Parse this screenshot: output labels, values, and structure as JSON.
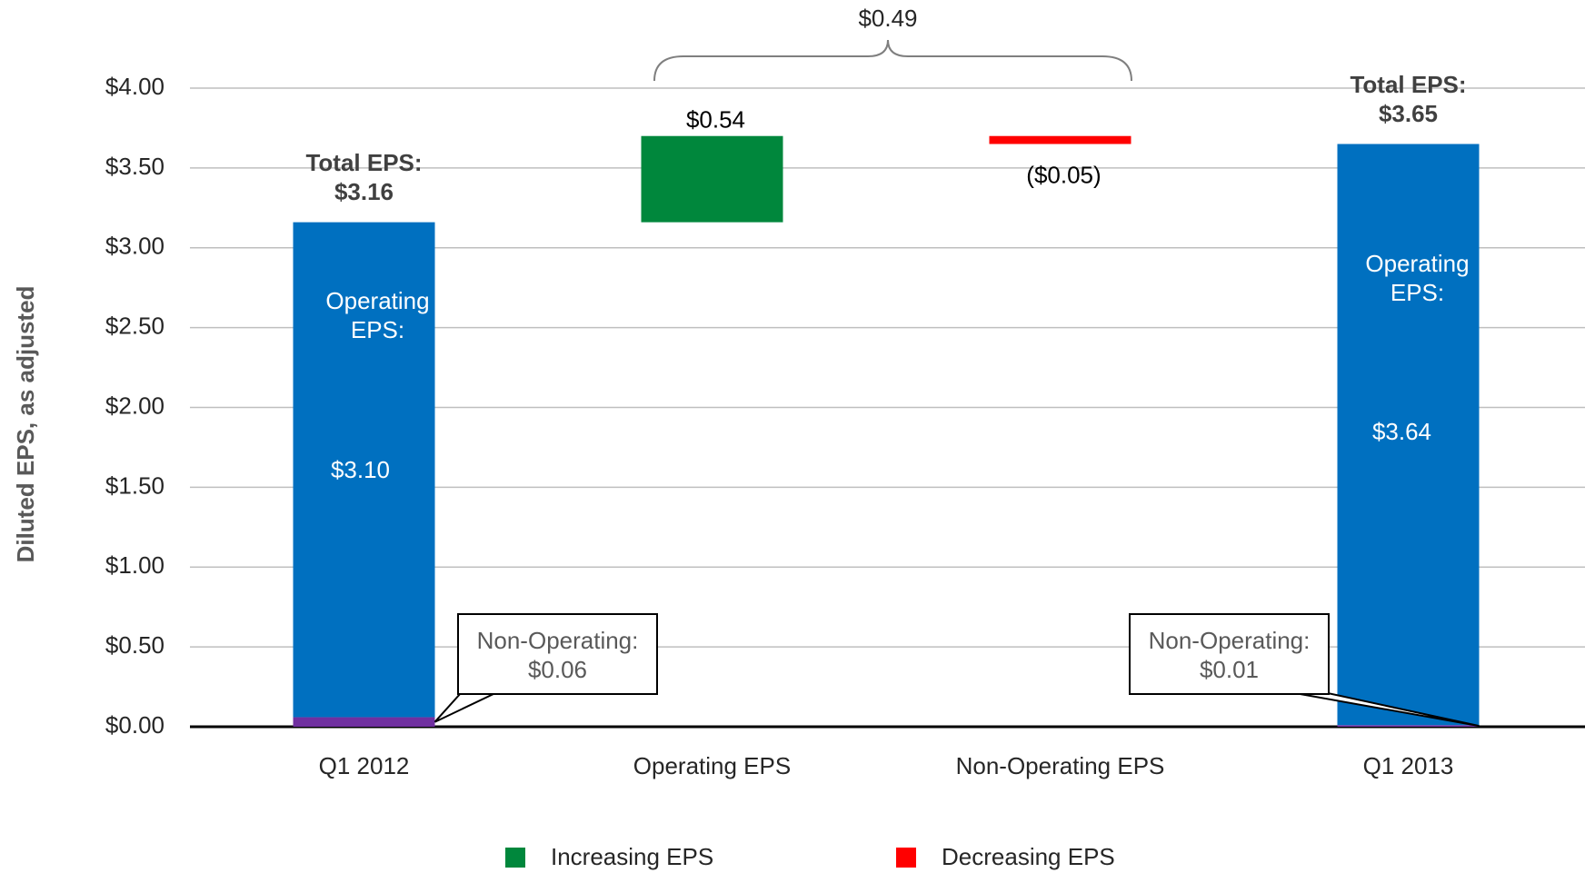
{
  "chart_data": {
    "type": "waterfall",
    "ylabel": "Diluted EPS, as adjusted",
    "categories": [
      "Q1 2012",
      "Operating EPS",
      "Non-Operating EPS",
      "Q1 2013"
    ],
    "ylim": [
      0,
      4
    ],
    "yticks": [
      {
        "value": 0,
        "label": "$0.00"
      },
      {
        "value": 0.5,
        "label": "$0.50"
      },
      {
        "value": 1,
        "label": "$1.00"
      },
      {
        "value": 1.5,
        "label": "$1.50"
      },
      {
        "value": 2,
        "label": "$2.00"
      },
      {
        "value": 2.5,
        "label": "$2.50"
      },
      {
        "value": 3,
        "label": "$3.00"
      },
      {
        "value": 3.5,
        "label": "$3.50"
      },
      {
        "value": 4,
        "label": "$4.00"
      }
    ],
    "grid": true,
    "operating_color": "#0070c0",
    "non_operating_color": "#7030a0",
    "operating_text": "Operating EPS:",
    "non_operating_text": "Non-Operating:",
    "total_text": "Total EPS:",
    "start": {
      "operating": 3.1,
      "operating_label": "$3.10",
      "non_operating": 0.06,
      "non_operating_label": "$0.06",
      "total": 3.16,
      "total_label": "$3.16"
    },
    "changes": [
      {
        "value": 0.54,
        "label": "$0.54",
        "color": "#00873c"
      },
      {
        "value": -0.05,
        "label": "($0.05)",
        "color": "#ff0000"
      }
    ],
    "end": {
      "operating": 3.64,
      "operating_label": "$3.64",
      "non_operating": 0.01,
      "non_operating_label": "$0.01",
      "total": 3.65,
      "total_label": "$3.65"
    },
    "brace": {
      "value": 0.49,
      "label": "$0.49"
    },
    "legend": [
      {
        "name": "Increasing EPS",
        "color": "#00873c"
      },
      {
        "name": "Decreasing EPS",
        "color": "#ff0000"
      }
    ]
  }
}
